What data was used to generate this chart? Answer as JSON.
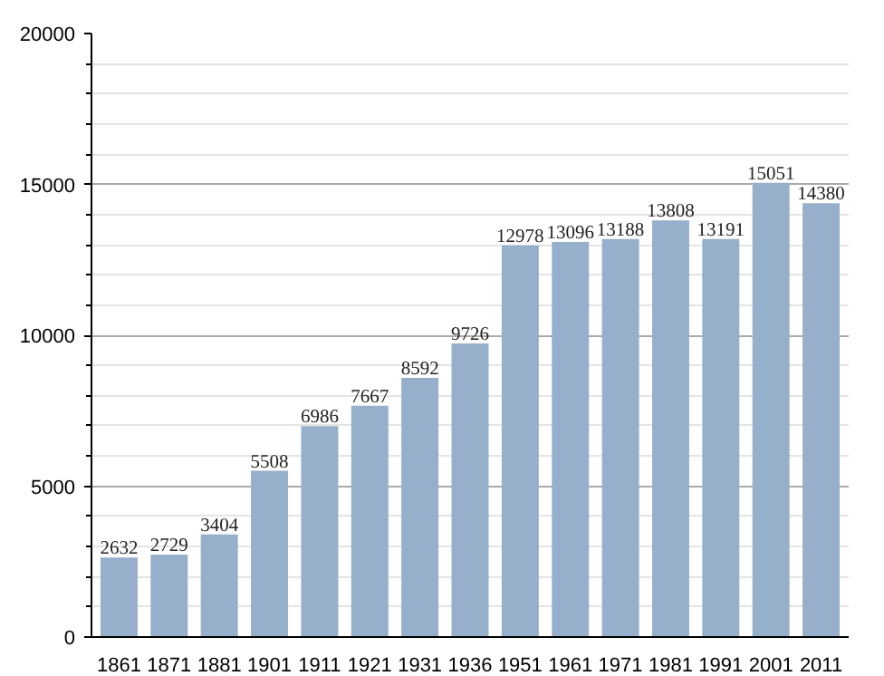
{
  "chart_data": {
    "type": "bar",
    "categories": [
      "1861",
      "1871",
      "1881",
      "1901",
      "1911",
      "1921",
      "1931",
      "1936",
      "1951",
      "1961",
      "1971",
      "1981",
      "1991",
      "2001",
      "2011"
    ],
    "values": [
      2632,
      2729,
      3404,
      5508,
      6986,
      7667,
      8592,
      9726,
      12978,
      13096,
      13188,
      13808,
      13191,
      15051,
      14380
    ],
    "color": "#96afcb",
    "ylim": [
      0,
      20000
    ],
    "yticks": [
      0,
      {
        "value": 1000,
        "label": null
      },
      {
        "value": 2000,
        "label": null
      },
      {
        "value": 3000,
        "label": null
      },
      {
        "value": 4000,
        "label": null
      },
      5000,
      {
        "value": 6000,
        "label": null
      },
      {
        "value": 7000,
        "label": null
      },
      {
        "value": 8000,
        "label": null
      },
      {
        "value": 9000,
        "label": null
      },
      10000,
      {
        "value": 11000,
        "label": null
      },
      {
        "value": 12000,
        "label": null
      },
      {
        "value": 13000,
        "label": null
      },
      {
        "value": 14000,
        "label": null
      },
      15000,
      {
        "value": 16000,
        "label": null
      },
      {
        "value": 17000,
        "label": null
      },
      {
        "value": 18000,
        "label": null
      },
      {
        "value": 19000,
        "label": null
      },
      20000
    ],
    "grid": "y",
    "data_labels": true
  }
}
